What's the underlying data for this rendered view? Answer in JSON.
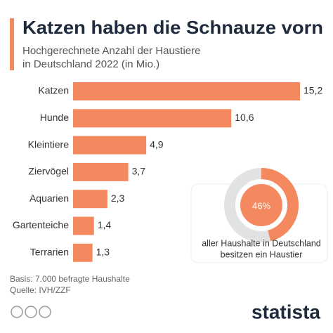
{
  "chart_data": [
    {
      "type": "bar",
      "orientation": "horizontal",
      "title": "Katzen haben die Schnauze vorn",
      "subtitle": [
        "Hochgerechnete Anzahl der Haustiere",
        "in Deutschland 2022 (in Mio.)"
      ],
      "categories": [
        "Katzen",
        "Hunde",
        "Kleintiere",
        "Ziervögel",
        "Aquarien",
        "Gartenteiche",
        "Terrarien"
      ],
      "values": [
        15.2,
        10.6,
        4.9,
        3.7,
        2.3,
        1.4,
        1.3
      ],
      "value_labels": [
        "15,2",
        "10,6",
        "4,9",
        "3,7",
        "2,3",
        "1,4",
        "1,3"
      ],
      "color": "#f4895f"
    },
    {
      "type": "donut",
      "values": [
        46
      ],
      "value_labels": [
        "46%"
      ],
      "annotation": [
        "aller Haushalte in Deutschland",
        "besitzen ein Haustier"
      ],
      "color": "#f4895f",
      "rest_color": "#e2e2e2"
    }
  ],
  "footer": {
    "basis": "Basis: 7.000 befragte Haushalte",
    "source": "Quelle: IVH/ZZF",
    "brand": "statista"
  }
}
